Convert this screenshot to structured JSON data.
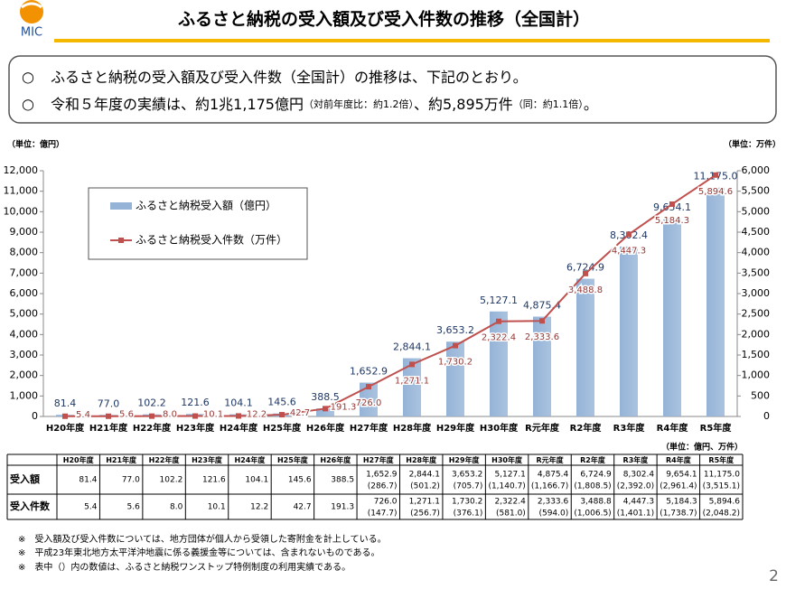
{
  "header": {
    "logo": "MIC",
    "title": "ふるさと納税の受入額及び受入件数の推移（全国計）",
    "page_number": "2"
  },
  "summary": {
    "lines": [
      [
        "ふるさと納税の受入額及び受入件数（全国計）の推移は、下記のとおり。"
      ],
      [
        "令和５年度の実績は、約1兆1,175億円",
        "（対前年度比：約1.2倍）",
        "、約5,895万件",
        "（同：約1.1倍）",
        "。"
      ]
    ]
  },
  "chart_data": {
    "type": "bar",
    "ylabel": "（単位：億円）",
    "y2label": "（単位：万件）",
    "categories": [
      "H20年度",
      "H21年度",
      "H22年度",
      "H23年度",
      "H24年度",
      "H25年度",
      "H26年度",
      "H27年度",
      "H28年度",
      "H29年度",
      "H30年度",
      "R元年度",
      "R2年度",
      "R3年度",
      "R4年度",
      "R5年度"
    ],
    "series": [
      {
        "name": "ふるさと納税受入額（億円）",
        "color": "#95b3d7",
        "values": [
          81.4,
          77.0,
          102.2,
          121.6,
          104.1,
          145.6,
          388.5,
          1652.9,
          2844.1,
          3653.2,
          5127.1,
          4875.4,
          6724.9,
          8302.4,
          9654.1,
          11175.0
        ],
        "value_labels": [
          "81.4",
          "77.0",
          "102.2",
          "121.6",
          "104.1",
          "145.6",
          "388.5",
          "1,652.9",
          "2,844.1",
          "3,653.2",
          "5,127.1",
          "4,875.4",
          "6,724.9",
          "8,302.4",
          "9,654.1",
          "11,175.0"
        ]
      },
      {
        "name": "ふるさと納税受入件数（万件）",
        "color": "#c0504d",
        "axis": "y2",
        "values": [
          5.4,
          5.6,
          8.0,
          10.1,
          12.2,
          42.7,
          191.3,
          726.0,
          1271.1,
          1730.2,
          2322.4,
          2333.6,
          3488.8,
          4447.3,
          5184.3,
          5894.6
        ],
        "value_labels": [
          "5.4",
          "5.6",
          "8.0",
          "10.1",
          "12.2",
          "42.7",
          "191.3",
          "726.0",
          "1,271.1",
          "1,730.2",
          "2,322.4",
          "2,333.6",
          "3,488.8",
          "4,447.3",
          "5,184.3",
          "5,894.6"
        ]
      }
    ],
    "ylim": [
      0,
      12000
    ],
    "yticks": [
      0,
      {
        "value": 1000,
        "label": "1,000"
      },
      {
        "value": 2000,
        "label": "2,000"
      },
      {
        "value": 3000,
        "label": "3,000"
      },
      {
        "value": 4000,
        "label": "4,000"
      },
      {
        "value": 5000,
        "label": "5,000"
      },
      {
        "value": 6000,
        "label": "6,000"
      },
      {
        "value": 7000,
        "label": "7,000"
      },
      {
        "value": 8000,
        "label": "8,000"
      },
      {
        "value": 9000,
        "label": "9,000"
      },
      {
        "value": 10000,
        "label": "10,000"
      },
      {
        "value": 11000,
        "label": "11,000"
      },
      {
        "value": 12000,
        "label": "12,000"
      }
    ],
    "y2lim": [
      0,
      6000
    ],
    "y2ticks": [
      0,
      500,
      {
        "value": 1000,
        "label": "1,000"
      },
      {
        "value": 1500,
        "label": "1,500"
      },
      {
        "value": 2000,
        "label": "2,000"
      },
      {
        "value": 2500,
        "label": "2,500"
      },
      {
        "value": 3000,
        "label": "3,000"
      },
      {
        "value": 3500,
        "label": "3,500"
      },
      {
        "value": 4000,
        "label": "4,000"
      },
      {
        "value": 4500,
        "label": "4,500"
      },
      {
        "value": 5000,
        "label": "5,000"
      },
      {
        "value": 5500,
        "label": "5,500"
      },
      {
        "value": 6000,
        "label": "6,000"
      }
    ],
    "legend": "upper left"
  },
  "table": {
    "unit": "（単位：億円、万件）",
    "rows": [
      {
        "label": "受入額",
        "values": [
          "81.4",
          "77.0",
          "102.2",
          "121.6",
          "104.1",
          "145.6",
          "388.5",
          "1,652.9",
          "2,844.1",
          "3,653.2",
          "5,127.1",
          "4,875.4",
          "6,724.9",
          "8,302.4",
          "9,654.1",
          "11,175.0"
        ],
        "sub": [
          null,
          null,
          null,
          null,
          null,
          null,
          null,
          "(286.7)",
          "(501.2)",
          "(705.7)",
          "(1,140.7)",
          "(1,166.7)",
          "(1,808.5)",
          "(2,392.0)",
          "(2,961.4)",
          "(3,515.1)"
        ]
      },
      {
        "label": "受入件数",
        "values": [
          "5.4",
          "5.6",
          "8.0",
          "10.1",
          "12.2",
          "42.7",
          "191.3",
          "726.0",
          "1,271.1",
          "1,730.2",
          "2,322.4",
          "2,333.6",
          "3,488.8",
          "4,447.3",
          "5,184.3",
          "5,894.6"
        ],
        "sub": [
          null,
          null,
          null,
          null,
          null,
          null,
          null,
          "(147.7)",
          "(256.7)",
          "(376.1)",
          "(581.0)",
          "(594.0)",
          "(1,006.5)",
          "(1,401.1)",
          "(1,738.7)",
          "(2,048.2)"
        ]
      }
    ]
  },
  "notes": [
    "※　受入額及び受入件数については、地方団体が個人から受領した寄附金を計上している。",
    "※　平成23年東北地方太平洋沖地震に係る義援金等については、含まれないものである。",
    "※　表中（）内の数値は、ふるさと納税ワンストップ特例制度の利用実績である。"
  ]
}
